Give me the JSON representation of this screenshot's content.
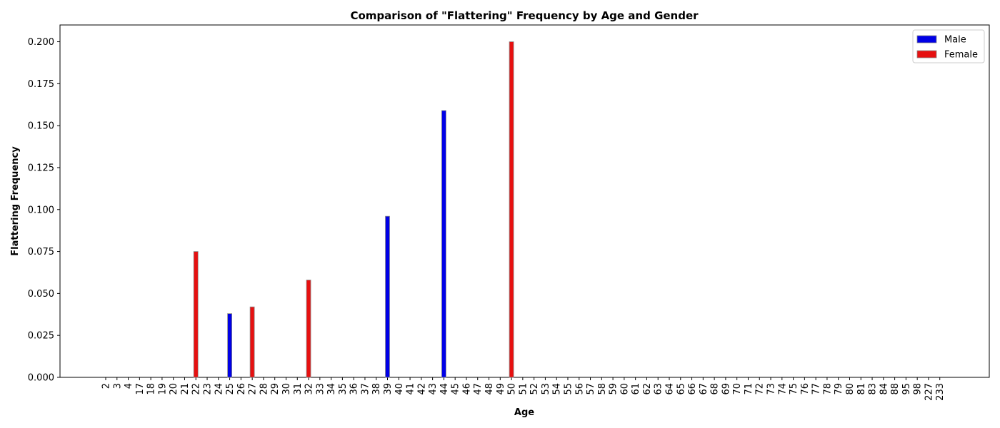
{
  "chart_data": {
    "type": "bar",
    "title": "Comparison of \"Flattering\" Frequency by Age and Gender",
    "xlabel": "Age",
    "ylabel": "Flattering Frequency",
    "ylim": [
      0,
      0.21
    ],
    "yticks": [
      "0.000",
      "0.025",
      "0.050",
      "0.075",
      "0.100",
      "0.125",
      "0.150",
      "0.175",
      "0.200"
    ],
    "grid": false,
    "legend_position": "top-right",
    "categories": [
      "2",
      "3",
      "4",
      "17",
      "18",
      "19",
      "20",
      "21",
      "22",
      "23",
      "24",
      "25",
      "26",
      "27",
      "28",
      "29",
      "30",
      "31",
      "32",
      "33",
      "34",
      "35",
      "36",
      "37",
      "38",
      "39",
      "40",
      "41",
      "42",
      "43",
      "44",
      "45",
      "46",
      "47",
      "48",
      "49",
      "50",
      "51",
      "52",
      "53",
      "54",
      "55",
      "56",
      "57",
      "58",
      "59",
      "60",
      "61",
      "62",
      "63",
      "64",
      "65",
      "66",
      "67",
      "68",
      "69",
      "70",
      "71",
      "72",
      "73",
      "74",
      "75",
      "76",
      "77",
      "78",
      "79",
      "80",
      "81",
      "83",
      "84",
      "88",
      "95",
      "98",
      "227",
      "233"
    ],
    "series": [
      {
        "name": "Male",
        "color": "#0000e6",
        "points": [
          {
            "x": "25",
            "y": 0.038
          },
          {
            "x": "39",
            "y": 0.096
          },
          {
            "x": "44",
            "y": 0.159
          }
        ]
      },
      {
        "name": "Female",
        "color": "#e61010",
        "points": [
          {
            "x": "22",
            "y": 0.075
          },
          {
            "x": "27",
            "y": 0.042
          },
          {
            "x": "32",
            "y": 0.058
          },
          {
            "x": "50",
            "y": 0.2
          }
        ]
      }
    ]
  }
}
